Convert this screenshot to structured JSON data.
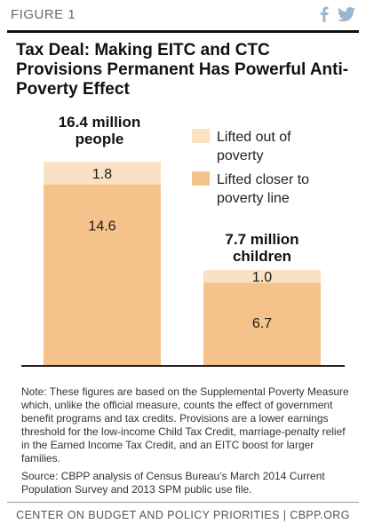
{
  "header": {
    "figure_label": "FIGURE 1",
    "share_icons": [
      "facebook-icon",
      "twitter-icon"
    ],
    "icon_color": "#9bb7cf"
  },
  "chart_data": {
    "type": "bar",
    "stacked": true,
    "title": "Tax Deal: Making EITC and CTC Provisions Permanent Has Powerful Anti-Poverty Effect",
    "categories": [
      {
        "label_lines": [
          "16.4 million",
          "people"
        ]
      },
      {
        "label_lines": [
          "7.7 million",
          "children"
        ]
      }
    ],
    "series": [
      {
        "name": "Lifted closer to poverty line",
        "values": [
          14.6,
          6.7
        ],
        "labels": [
          "14.6",
          "6.7"
        ],
        "color": "#f6c28b"
      },
      {
        "name": "Lifted out of poverty",
        "values": [
          1.8,
          1.0
        ],
        "labels": [
          "1.8",
          "1.0"
        ],
        "color": "#fbe1c3"
      }
    ],
    "legend": {
      "position": "top-right",
      "items": [
        {
          "lines": [
            "Lifted out of",
            "poverty"
          ],
          "color": "#fbe1c3"
        },
        {
          "lines": [
            "Lifted closer to",
            "poverty line"
          ],
          "color": "#f6c28b"
        }
      ]
    },
    "ylim": [
      0,
      16.4
    ],
    "grid": false
  },
  "notes": {
    "note": "Note: These figures are based on the Supplemental Poverty Measure which, unlike the official measure, counts the effect of government benefit programs and tax credits. Provisions are a lower earnings threshold for the low-income Child Tax Credit, marriage-penalty relief in the Earned Income Tax Credit, and an EITC boost for larger families.",
    "source": "Source: CBPP analysis of Census Bureau’s March 2014 Current Population Survey and 2013 SPM public use file."
  },
  "footer": {
    "text": "CENTER ON BUDGET AND POLICY PRIORITIES | CBPP.ORG"
  }
}
